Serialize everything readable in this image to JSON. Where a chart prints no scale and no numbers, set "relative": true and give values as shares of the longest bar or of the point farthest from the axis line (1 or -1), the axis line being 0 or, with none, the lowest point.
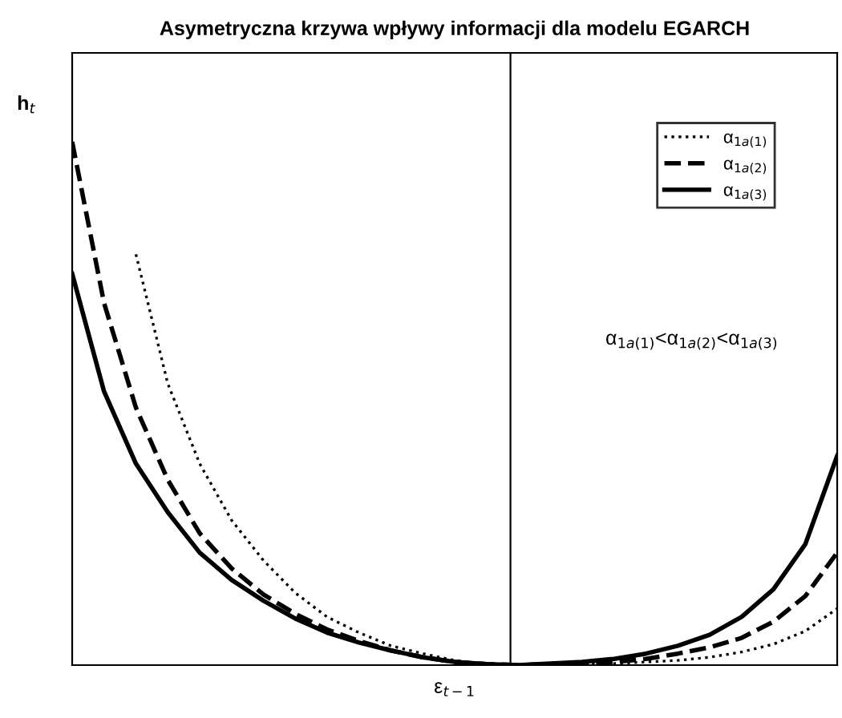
{
  "chart_data": {
    "type": "line",
    "title": "Asymetryczna krzywa wpływy informacji dla modelu EGARCH",
    "xlabel": "ε$_{t−1}$",
    "ylabel": "h$_{t}$",
    "relative": true,
    "tick_labels": false,
    "legend": "top right",
    "categories": [
      null,
      null,
      null,
      null,
      null,
      null,
      null,
      null,
      null,
      null,
      null,
      null,
      null,
      null,
      null,
      null,
      null,
      null,
      null,
      null,
      null,
      null,
      null,
      null,
      null
    ],
    "series": [
      {
        "name": "α$_{1a(1)}$",
        "color": "#000000",
        "line_style": "dotted",
        "values": [
          null,
          null,
          0.785,
          0.538,
          0.385,
          0.277,
          0.2,
          0.138,
          0.092,
          0.062,
          0.037,
          0.022,
          0.009,
          0.002,
          0,
          0,
          0.002,
          0.003,
          0.006,
          0.009,
          0.015,
          0.025,
          0.04,
          0.065,
          0.108
        ]
      },
      {
        "name": "α$_{1a(2)}$",
        "color": "#000000",
        "line_style": "dashed",
        "values": [
          1,
          0.692,
          0.492,
          0.354,
          0.252,
          0.185,
          0.135,
          0.098,
          0.068,
          0.046,
          0.028,
          0.015,
          0.006,
          0.002,
          0,
          0.002,
          0.003,
          0.006,
          0.012,
          0.022,
          0.034,
          0.052,
          0.083,
          0.132,
          0.215
        ]
      },
      {
        "name": "α$_{1a(3)}$",
        "color": "#000000",
        "line_style": "solid",
        "values": [
          0.748,
          0.523,
          0.385,
          0.292,
          0.215,
          0.163,
          0.123,
          0.089,
          0.062,
          0.043,
          0.028,
          0.015,
          0.006,
          0.002,
          0,
          0.003,
          0.006,
          0.012,
          0.022,
          0.037,
          0.058,
          0.092,
          0.145,
          0.231,
          0.4
        ]
      }
    ],
    "annotations": [
      "α$_{1a(1)}$<α$_{1a(2)}$<α$_{1a(3)}$"
    ]
  }
}
